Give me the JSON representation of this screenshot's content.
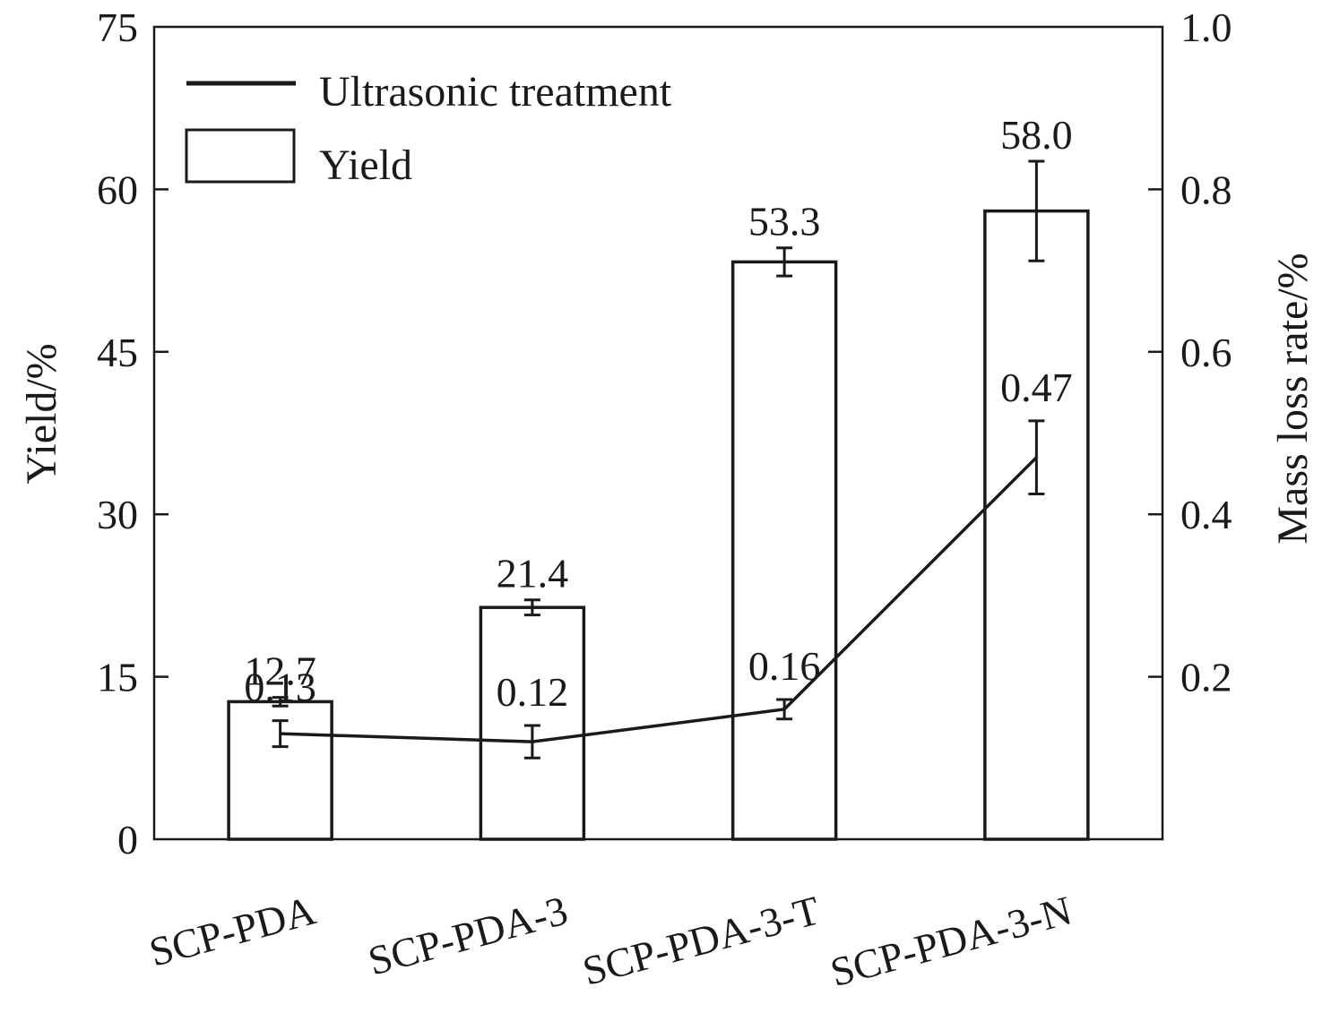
{
  "chart_data": {
    "type": "bar",
    "categories": [
      "SCP-PDA",
      "SCP-PDA-3",
      "SCP-PDA-3-T",
      "SCP-PDA-3-N"
    ],
    "series": [
      {
        "name": "Yield",
        "type": "bar",
        "axis": "left",
        "values": [
          12.7,
          21.4,
          53.3,
          58.0
        ],
        "errors": [
          0.4,
          0.7,
          1.3,
          4.6
        ],
        "labels": [
          "12.7",
          "21.4",
          "53.3",
          "58.0"
        ]
      },
      {
        "name": "Ultrasonic treatment",
        "type": "line",
        "axis": "right",
        "values": [
          0.13,
          0.12,
          0.16,
          0.47
        ],
        "errors": [
          0.016,
          0.02,
          0.012,
          0.045
        ],
        "labels": [
          "0.13",
          "0.12",
          "0.16",
          "0.47"
        ]
      }
    ],
    "ylabel": "Yield/%",
    "y2label": "Mass loss rate/%",
    "ylim": [
      0,
      75
    ],
    "y2lim": [
      0,
      1.0
    ],
    "yticks": [
      "0",
      "15",
      "30",
      "45",
      "60",
      "75"
    ],
    "y2ticks": [
      "0.2",
      "0.4",
      "0.6",
      "0.8",
      "1.0"
    ],
    "legend_position": "top-left",
    "grid": false
  }
}
